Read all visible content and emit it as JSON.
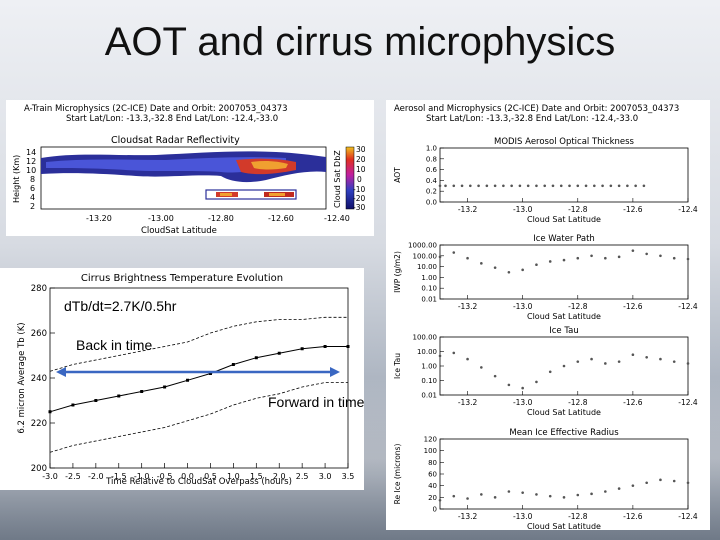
{
  "slide": {
    "title": "AOT and cirrus microphysics"
  },
  "radar_panel": {
    "header_line1": "A-Train Microphysics (2C-ICE)   Date and Orbit: 2007053_04373",
    "header_line2": "Start Lat/Lon: -13.3,-32.8  End Lat/Lon: -12.4,-33.0",
    "title": "Cloudsat Radar Reflectivity",
    "ylabel": "Height (Km)",
    "xlabel": "CloudSat Latitude",
    "colorbar_label": "Cloud Sat DbZ",
    "yticks": [
      "14",
      "12",
      "10",
      "8",
      "6",
      "4",
      "2"
    ],
    "xticks": [
      "-13.20",
      "-13.00",
      "-12.80",
      "-12.60",
      "-12.40"
    ],
    "cbar_ticks": [
      "30",
      "20",
      "10",
      "0",
      "-10",
      "-20",
      "-30"
    ]
  },
  "right_header": {
    "line1": "Aerosol and Microphysics (2C-ICE)   Date and Orbit: 2007053_04373",
    "line2": "Start Lat/Lon: -13.3,-32.8  End Lat/Lon: -12.4,-33.0"
  },
  "annotations": {
    "rate": "dTb/dt=2.7K/0.5hr",
    "back": "Back in time",
    "forward": "Forward in time"
  },
  "chart_data": [
    {
      "type": "line",
      "title": "Cirrus Brightness Temperature Evolution",
      "xlabel": "Time Relative to CloudSat Overpass (hours)",
      "ylabel": "6.2 micron Average Tb (K)",
      "xlim": [
        -3.0,
        3.5
      ],
      "ylim": [
        200,
        280
      ],
      "xticks": [
        "-3.0",
        "-2.5",
        "-2.0",
        "-1.5",
        "-1.0",
        "-0.5",
        "0.0",
        "0.5",
        "1.0",
        "1.5",
        "2.0",
        "2.5",
        "3.0",
        "3.5"
      ],
      "yticks": [
        "200",
        "220",
        "240",
        "260",
        "280"
      ],
      "x": [
        -3.0,
        -2.5,
        -2.0,
        -1.5,
        -1.0,
        -0.5,
        0.0,
        0.5,
        1.0,
        1.5,
        2.0,
        2.5,
        3.0,
        3.5
      ],
      "series": [
        {
          "style": "solid-markers",
          "values": [
            225,
            228,
            230,
            232,
            234,
            236,
            239,
            242,
            246,
            249,
            251,
            253,
            254,
            254
          ]
        },
        {
          "style": "dashed-upper",
          "values": [
            243,
            246,
            248,
            250,
            252,
            254,
            256,
            260,
            263,
            265,
            266,
            266,
            267,
            267
          ]
        },
        {
          "style": "dashed-lower",
          "values": [
            207,
            210,
            212,
            214,
            216,
            218,
            221,
            224,
            228,
            231,
            233,
            236,
            238,
            238
          ]
        }
      ],
      "grid": false
    },
    {
      "type": "scatter",
      "title": "MODIS Aerosol Optical Thickness",
      "ylabel": "AOT",
      "xlabel": "Cloud Sat Latitude",
      "xlim": [
        -13.3,
        -12.4
      ],
      "ylim": [
        0.0,
        1.0
      ],
      "xticks": [
        "-13.2",
        "-13.0",
        "-12.8",
        "-12.6",
        "-12.4"
      ],
      "yticks": [
        "1.0",
        "0.8",
        "0.6",
        "0.4",
        "0.2",
        "0.0"
      ],
      "x": [
        -13.3,
        -13.28,
        -13.25,
        -13.22,
        -13.19,
        -13.16,
        -13.13,
        -13.1,
        -13.07,
        -13.04,
        -13.01,
        -12.98,
        -12.95,
        -12.92,
        -12.89,
        -12.86,
        -12.83,
        -12.8,
        -12.77,
        -12.74,
        -12.71,
        -12.68,
        -12.65,
        -12.62,
        -12.59,
        -12.56
      ],
      "values": [
        0.3,
        0.3,
        0.3,
        0.3,
        0.3,
        0.3,
        0.3,
        0.3,
        0.3,
        0.3,
        0.3,
        0.3,
        0.3,
        0.3,
        0.3,
        0.3,
        0.3,
        0.3,
        0.3,
        0.3,
        0.3,
        0.3,
        0.3,
        0.3,
        0.3,
        0.3
      ]
    },
    {
      "type": "scatter",
      "title": "Ice Water Path",
      "ylabel": "IWP (g/m2)",
      "xlabel": "Cloud Sat Latitude",
      "xlim": [
        -13.3,
        -12.4
      ],
      "yscale": "log",
      "ylim": [
        0.01,
        1000.0
      ],
      "xticks": [
        "-13.2",
        "-13.0",
        "-12.8",
        "-12.6",
        "-12.4"
      ],
      "yticks": [
        "1000.00",
        "100.00",
        "10.00",
        "1.00",
        "0.10",
        "0.01"
      ],
      "x": [
        -13.3,
        -13.25,
        -13.2,
        -13.15,
        -13.1,
        -13.05,
        -13.0,
        -12.95,
        -12.9,
        -12.85,
        -12.8,
        -12.75,
        -12.7,
        -12.65,
        -12.6,
        -12.55,
        -12.5,
        -12.45,
        -12.4
      ],
      "values": [
        80,
        200,
        60,
        20,
        8,
        3,
        5,
        15,
        30,
        40,
        60,
        100,
        60,
        80,
        300,
        150,
        100,
        60,
        50
      ]
    },
    {
      "type": "scatter",
      "title": "Ice Tau",
      "ylabel": "Ice Tau",
      "xlabel": "Cloud Sat Latitude",
      "xlim": [
        -13.3,
        -12.4
      ],
      "yscale": "log",
      "ylim": [
        0.01,
        100.0
      ],
      "xticks": [
        "-13.2",
        "-13.0",
        "-12.8",
        "-12.6",
        "-12.4"
      ],
      "yticks": [
        "100.00",
        "10.00",
        "1.00",
        "0.10",
        "0.01"
      ],
      "x": [
        -13.3,
        -13.25,
        -13.2,
        -13.15,
        -13.1,
        -13.05,
        -13.0,
        -12.95,
        -12.9,
        -12.85,
        -12.8,
        -12.75,
        -12.7,
        -12.65,
        -12.6,
        -12.55,
        -12.5,
        -12.45,
        -12.4
      ],
      "values": [
        5,
        8,
        3,
        0.8,
        0.2,
        0.05,
        0.03,
        0.08,
        0.4,
        1.0,
        2,
        3,
        1.5,
        2,
        6,
        4,
        3,
        2,
        1.5
      ]
    },
    {
      "type": "scatter",
      "title": "Mean Ice Effective Radius",
      "ylabel": "Re Ice (microns)",
      "xlabel": "Cloud Sat Latitude",
      "xlim": [
        -13.3,
        -12.4
      ],
      "ylim": [
        0,
        120
      ],
      "xticks": [
        "-13.2",
        "-13.0",
        "-12.8",
        "-12.6",
        "-12.4"
      ],
      "yticks": [
        "120",
        "100",
        "80",
        "60",
        "40",
        "20",
        "0"
      ],
      "x": [
        -13.3,
        -13.25,
        -13.2,
        -13.15,
        -13.1,
        -13.05,
        -13.0,
        -12.95,
        -12.9,
        -12.85,
        -12.8,
        -12.75,
        -12.7,
        -12.65,
        -12.6,
        -12.55,
        -12.5,
        -12.45,
        -12.4
      ],
      "values": [
        15,
        22,
        18,
        25,
        20,
        30,
        28,
        25,
        22,
        20,
        24,
        26,
        30,
        35,
        40,
        45,
        50,
        48,
        45
      ]
    }
  ]
}
